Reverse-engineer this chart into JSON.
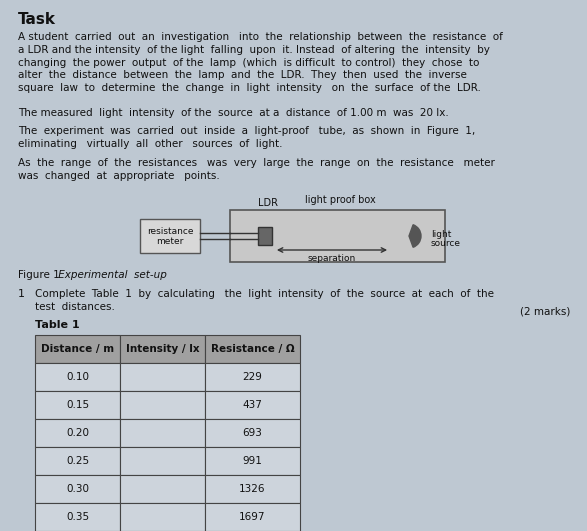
{
  "title": "Task",
  "paragraph1": "A student  carried  out  an  investigation   into  the  relationship  between  the  resistance  of\na LDR and the intensity  of the light  falling  upon  it. Instead  of altering  the  intensity  by\nchanging  the power  output  of the  lamp  (which  is difficult  to control)  they  chose  to\nalter  the  distance  between  the  lamp  and  the  LDR.  They  then  used  the  inverse\nsquare  law  to  determine  the  change  in  light  intensity   on  the  surface  of the  LDR.",
  "paragraph2": "The measured  light  intensity  of the  source  at a  distance  of 1.00 m  was  20 lx.",
  "paragraph3": "The  experiment  was  carried  out  inside  a  light-proof   tube,  as  shown  in  Figure  1,\neliminating   virtually  all  other   sources  of  light.",
  "paragraph4": "As  the  range  of  the  resistances   was  very  large  the  range  on  the  resistance   meter\nwas  changed  at  appropriate   points.",
  "fig_caption_bold": "Figure 1",
  "fig_caption_italic": " Experimental  set-up",
  "question_num": "1",
  "question_text": "Complete  Table  1  by  calculating   the  light  intensity  of  the  source  at  each  of  the\ntest  distances.",
  "marks": "(2 marks)",
  "table_title": "Table 1",
  "col_headers": [
    "Distance / m",
    "Intensity / lx",
    "Resistance / Ω"
  ],
  "distances": [
    "0.10",
    "0.15",
    "0.20",
    "0.25",
    "0.30",
    "0.35"
  ],
  "intensities": [
    "",
    "",
    "",
    "",
    "",
    ""
  ],
  "resistances": [
    "229",
    "437",
    "693",
    "991",
    "1326",
    "1697"
  ],
  "bg_color": "#bec8d2",
  "text_color": "#111111",
  "table_header_bg": "#a8a8a8",
  "table_body_bg": "#dde2e8",
  "diagram_label_top": "light proof box",
  "diagram_label_ldr": "LDR",
  "diagram_label_rm_line1": "resistance",
  "diagram_label_rm_line2": "meter",
  "diagram_label_sep": "separation",
  "diagram_label_light_line1": "light",
  "diagram_label_light_line2": "source"
}
